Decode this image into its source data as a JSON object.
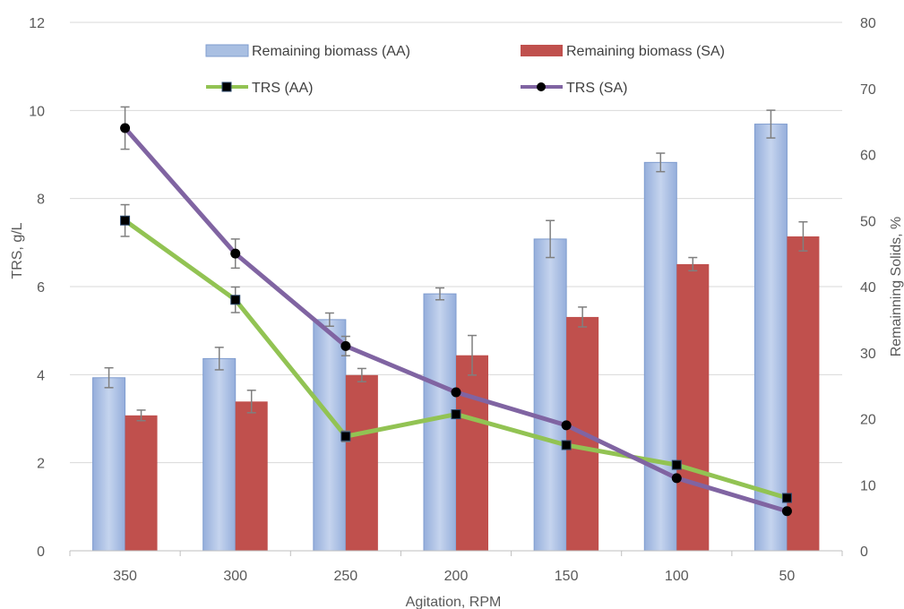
{
  "chart_data": {
    "type": "bar",
    "categories": [
      "350",
      "300",
      "250",
      "200",
      "150",
      "100",
      "50"
    ],
    "xlabel": "Agitation, RPM",
    "ylabel": "TRS, g/L",
    "y2label": "Remainning Solids, %",
    "ylim": [
      0,
      12
    ],
    "y2lim": [
      0,
      80
    ],
    "yticks": [
      "0",
      "2",
      "4",
      "6",
      "8",
      "10",
      "12"
    ],
    "y2ticks": [
      "0",
      "10",
      "20",
      "30",
      "40",
      "50",
      "60",
      "70",
      "80"
    ],
    "grid": true,
    "legend_position": "top",
    "series": [
      {
        "name": "Remaining biomass (AA)",
        "kind": "bar",
        "axis": "right",
        "color": "#8FAADC",
        "values": [
          26.2,
          29.1,
          35.0,
          38.9,
          47.2,
          58.8,
          64.6
        ],
        "errors": [
          1.5,
          1.7,
          1.0,
          0.9,
          2.8,
          1.4,
          2.1
        ]
      },
      {
        "name": "Remaining biomass (SA)",
        "kind": "bar",
        "axis": "right",
        "color": "#C0504D",
        "values": [
          20.5,
          22.6,
          26.6,
          29.6,
          35.4,
          43.4,
          47.6
        ],
        "errors": [
          0.8,
          1.7,
          1.0,
          3.0,
          1.5,
          1.0,
          2.2
        ]
      },
      {
        "name": "TRS (AA)",
        "kind": "line",
        "axis": "left",
        "color": "#92C353",
        "marker": "square",
        "values": [
          7.5,
          5.7,
          2.6,
          3.1,
          2.4,
          1.95,
          1.2
        ],
        "errors": [
          0.36,
          0.29,
          0.12,
          0.0,
          0.0,
          0.0,
          0.0
        ]
      },
      {
        "name": "TRS (SA)",
        "kind": "line",
        "axis": "left",
        "color": "#8064A2",
        "marker": "circle",
        "values": [
          9.6,
          6.75,
          4.65,
          3.6,
          2.85,
          1.65,
          0.9
        ],
        "errors": [
          0.48,
          0.33,
          0.22,
          0.0,
          0.0,
          0.0,
          0.0
        ]
      }
    ]
  }
}
